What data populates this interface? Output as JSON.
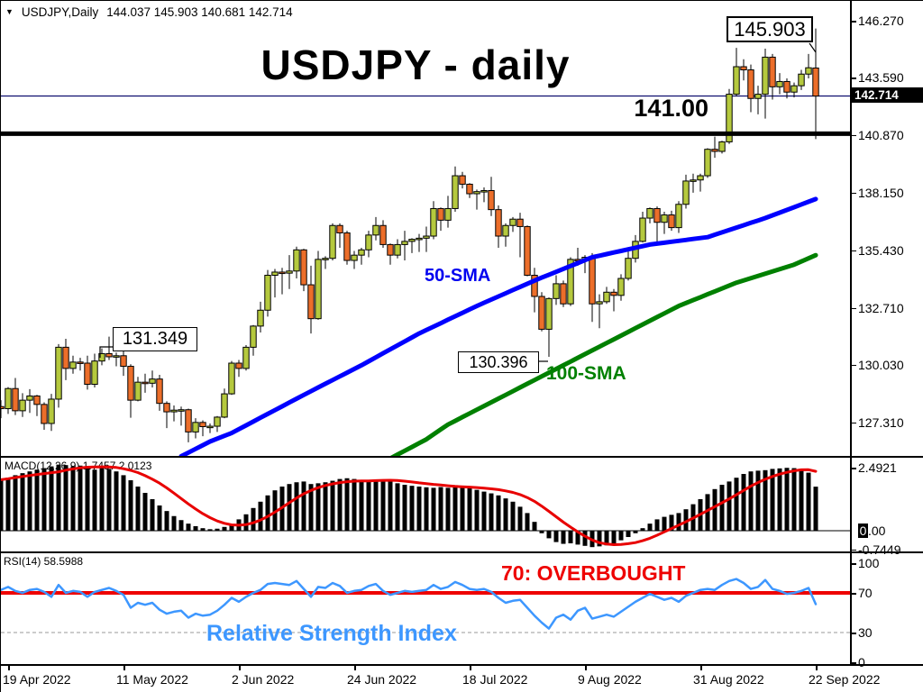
{
  "header": {
    "triangle_icon": "▼",
    "symbol": "USDJPY,Daily",
    "ohlc": "144.037 145.903 140.681 142.714"
  },
  "main": {
    "title": "USDJPY - daily",
    "high_annotation": "145.903",
    "support_label": "141.00",
    "annotation_131": "131.349",
    "annotation_130": "130.396",
    "sma50_label": "50-SMA",
    "sma100_label": "100-SMA",
    "price_badge": "142.714"
  },
  "macd_panel": {
    "label": "MACD(12,26,9) 1.7457 2.0123"
  },
  "rsi_panel": {
    "label": "RSI(14) 58.5988",
    "overbought": "70: OVERBOUGHT",
    "caption": "Relative Strength Index"
  },
  "chart_data": {
    "type": "candlestick",
    "symbol": "USDJPY",
    "timeframe": "Daily",
    "title": "USDJPY - daily",
    "x_ticks": [
      "19 Apr 2022",
      "11 May 2022",
      "2 Jun 2022",
      "24 Jun 2022",
      "18 Jul 2022",
      "9 Aug 2022",
      "31 Aug 2022",
      "22 Sep 2022"
    ],
    "y_axis": [
      "146.270",
      "143.590",
      "140.870",
      "138.150",
      "135.430",
      "132.710",
      "130.030",
      "127.310"
    ],
    "price_line": 142.714,
    "support_line": 141.0,
    "candles": [
      [
        128.05,
        128.35,
        127.5,
        127.95
      ],
      [
        127.95,
        128.97,
        127.7,
        128.9
      ],
      [
        128.9,
        129.4,
        127.65,
        127.85
      ],
      [
        127.85,
        128.68,
        127.56,
        128.35
      ],
      [
        128.35,
        128.87,
        127.75,
        128.55
      ],
      [
        128.55,
        128.6,
        127.6,
        128.15
      ],
      [
        128.15,
        128.25,
        126.95,
        127.25
      ],
      [
        127.25,
        128.65,
        126.9,
        128.4
      ],
      [
        128.4,
        131.0,
        128.0,
        130.85
      ],
      [
        130.85,
        131.25,
        129.3,
        129.85
      ],
      [
        129.85,
        130.45,
        129.6,
        130.15
      ],
      [
        130.15,
        130.35,
        129.75,
        130.1
      ],
      [
        130.1,
        130.45,
        128.85,
        129.1
      ],
      [
        129.1,
        130.55,
        128.95,
        130.2
      ],
      [
        130.2,
        130.8,
        130.0,
        130.55
      ],
      [
        130.55,
        131.35,
        130.25,
        130.4
      ],
      [
        130.4,
        130.6,
        129.95,
        130.45
      ],
      [
        130.45,
        130.8,
        129.5,
        129.95
      ],
      [
        129.95,
        130.05,
        127.52,
        128.35
      ],
      [
        128.35,
        129.45,
        128.3,
        129.2
      ],
      [
        129.2,
        129.6,
        128.7,
        129.15
      ],
      [
        129.15,
        129.75,
        128.95,
        129.35
      ],
      [
        129.35,
        129.55,
        127.85,
        128.2
      ],
      [
        128.2,
        128.3,
        127.03,
        127.8
      ],
      [
        127.8,
        128.1,
        127.35,
        127.88
      ],
      [
        127.88,
        128.05,
        127.15,
        127.9
      ],
      [
        127.9,
        127.95,
        126.36,
        126.85
      ],
      [
        126.85,
        127.5,
        126.55,
        127.3
      ],
      [
        127.3,
        127.4,
        126.65,
        127.1
      ],
      [
        127.1,
        127.25,
        126.8,
        127.12
      ],
      [
        127.12,
        127.6,
        126.85,
        127.55
      ],
      [
        127.55,
        128.9,
        127.5,
        128.65
      ],
      [
        128.65,
        130.2,
        128.6,
        130.1
      ],
      [
        130.1,
        130.25,
        129.45,
        129.85
      ],
      [
        129.85,
        130.95,
        129.75,
        130.85
      ],
      [
        130.85,
        131.9,
        130.45,
        131.85
      ],
      [
        131.85,
        133.0,
        131.55,
        132.6
      ],
      [
        132.6,
        134.5,
        132.3,
        134.25
      ],
      [
        134.25,
        134.55,
        133.2,
        134.4
      ],
      [
        134.4,
        134.6,
        133.35,
        134.35
      ],
      [
        134.35,
        135.2,
        133.6,
        134.45
      ],
      [
        134.45,
        135.6,
        134.1,
        135.45
      ],
      [
        135.45,
        135.5,
        133.5,
        133.8
      ],
      [
        133.8,
        134.7,
        131.5,
        132.2
      ],
      [
        132.2,
        135.4,
        132.15,
        135.0
      ],
      [
        135.0,
        135.15,
        134.55,
        135.05
      ],
      [
        135.05,
        136.7,
        134.95,
        136.6
      ],
      [
        136.6,
        136.7,
        135.55,
        136.25
      ],
      [
        136.25,
        136.35,
        134.75,
        134.95
      ],
      [
        134.95,
        135.4,
        134.55,
        135.2
      ],
      [
        135.2,
        135.55,
        134.75,
        135.45
      ],
      [
        135.45,
        136.35,
        135.1,
        136.15
      ],
      [
        136.15,
        137.0,
        135.9,
        136.6
      ],
      [
        136.6,
        136.85,
        135.55,
        135.7
      ],
      [
        135.7,
        135.75,
        134.75,
        135.2
      ],
      [
        135.2,
        135.95,
        135.05,
        135.7
      ],
      [
        135.7,
        136.35,
        134.95,
        135.85
      ],
      [
        135.85,
        136.0,
        135.3,
        135.95
      ],
      [
        135.95,
        136.2,
        135.35,
        136.0
      ],
      [
        136.0,
        136.55,
        135.35,
        136.1
      ],
      [
        136.1,
        137.75,
        135.95,
        137.4
      ],
      [
        137.4,
        137.45,
        136.35,
        136.85
      ],
      [
        136.85,
        138.0,
        136.5,
        137.4
      ],
      [
        137.4,
        139.39,
        137.25,
        138.95
      ],
      [
        138.95,
        139.13,
        138.35,
        138.55
      ],
      [
        138.55,
        138.6,
        137.9,
        138.1
      ],
      [
        138.1,
        138.3,
        137.35,
        138.2
      ],
      [
        138.2,
        138.4,
        137.7,
        138.25
      ],
      [
        138.25,
        138.9,
        137.05,
        137.35
      ],
      [
        137.35,
        137.55,
        135.55,
        136.1
      ],
      [
        136.1,
        136.7,
        135.6,
        136.6
      ],
      [
        136.6,
        137.0,
        136.3,
        136.9
      ],
      [
        136.9,
        137.2,
        135.1,
        136.55
      ],
      [
        136.55,
        136.6,
        134.2,
        134.25
      ],
      [
        134.25,
        134.6,
        132.5,
        133.25
      ],
      [
        133.25,
        133.45,
        131.6,
        131.7
      ],
      [
        131.7,
        133.2,
        130.4,
        133.15
      ],
      [
        133.15,
        134.25,
        132.85,
        133.85
      ],
      [
        133.85,
        134.0,
        132.75,
        132.9
      ],
      [
        132.9,
        135.1,
        132.8,
        135.0
      ],
      [
        135.0,
        135.55,
        134.7,
        134.95
      ],
      [
        134.95,
        135.2,
        134.35,
        135.1
      ],
      [
        135.1,
        135.3,
        132.05,
        132.9
      ],
      [
        132.9,
        133.35,
        131.75,
        133.0
      ],
      [
        133.0,
        133.7,
        132.9,
        133.45
      ],
      [
        133.45,
        133.6,
        132.55,
        133.3
      ],
      [
        133.3,
        134.3,
        133.05,
        134.1
      ],
      [
        134.1,
        135.5,
        134.0,
        135.05
      ],
      [
        135.05,
        136.15,
        134.85,
        135.85
      ],
      [
        135.85,
        137.25,
        135.8,
        136.95
      ],
      [
        136.95,
        137.45,
        136.7,
        137.4
      ],
      [
        137.4,
        137.5,
        135.8,
        136.75
      ],
      [
        136.75,
        137.25,
        136.2,
        137.1
      ],
      [
        137.1,
        137.3,
        136.35,
        136.5
      ],
      [
        136.5,
        137.75,
        136.25,
        137.6
      ],
      [
        137.6,
        139.0,
        137.4,
        138.7
      ],
      [
        138.7,
        139.05,
        138.15,
        138.75
      ],
      [
        138.75,
        139.05,
        138.2,
        138.95
      ],
      [
        138.95,
        140.25,
        138.85,
        140.2
      ],
      [
        140.2,
        140.8,
        139.8,
        140.1
      ],
      [
        140.1,
        140.6,
        140.0,
        140.55
      ],
      [
        140.55,
        143.05,
        140.45,
        142.8
      ],
      [
        142.8,
        144.99,
        142.7,
        144.1
      ],
      [
        144.1,
        144.45,
        143.45,
        143.95
      ],
      [
        143.95,
        144.2,
        141.95,
        142.6
      ],
      [
        142.6,
        143.2,
        141.85,
        142.8
      ],
      [
        142.8,
        144.95,
        141.65,
        144.55
      ],
      [
        144.55,
        144.7,
        142.55,
        143.15
      ],
      [
        143.15,
        143.8,
        142.8,
        143.4
      ],
      [
        143.4,
        143.55,
        142.6,
        142.9
      ],
      [
        142.9,
        143.35,
        142.65,
        143.2
      ],
      [
        143.2,
        143.95,
        143.0,
        143.75
      ],
      [
        143.75,
        144.7,
        143.55,
        144.05
      ],
      [
        144.037,
        145.903,
        140.681,
        142.714
      ]
    ],
    "sma50_anchors": [
      [
        25,
        125.7
      ],
      [
        29,
        126.4
      ],
      [
        32,
        126.8
      ],
      [
        42,
        128.6
      ],
      [
        50,
        130.0
      ],
      [
        58,
        131.5
      ],
      [
        66,
        132.8
      ],
      [
        74,
        134.0
      ],
      [
        82,
        135.1
      ],
      [
        90,
        135.7
      ],
      [
        98,
        136.05
      ],
      [
        106,
        136.95
      ],
      [
        113,
        137.85
      ]
    ],
    "sma100_anchors": [
      [
        54,
        125.6
      ],
      [
        59,
        126.5
      ],
      [
        62,
        127.2
      ],
      [
        70,
        128.6
      ],
      [
        78,
        130.0
      ],
      [
        86,
        131.4
      ],
      [
        94,
        132.8
      ],
      [
        102,
        133.9
      ],
      [
        110,
        134.75
      ],
      [
        113,
        135.2
      ]
    ],
    "macd": {
      "axis": [
        "2.4921",
        "0.00",
        "-0.7449"
      ],
      "last_main": 1.7457,
      "last_signal": 2.0123,
      "signal_method": "sma9 of values",
      "values": [
        2.02,
        2.1,
        2.2,
        2.28,
        2.35,
        2.42,
        2.48,
        2.55,
        2.62,
        2.6,
        2.55,
        2.58,
        2.5,
        2.42,
        2.48,
        2.45,
        2.35,
        2.2,
        2.0,
        1.75,
        1.5,
        1.25,
        1.0,
        0.78,
        0.58,
        0.42,
        0.28,
        0.18,
        0.1,
        0.06,
        0.08,
        0.15,
        0.25,
        0.45,
        0.65,
        0.9,
        1.15,
        1.4,
        1.6,
        1.75,
        1.85,
        1.92,
        1.95,
        1.85,
        1.88,
        1.92,
        1.98,
        2.05,
        2.08,
        2.05,
        2.0,
        1.97,
        1.95,
        1.98,
        1.95,
        1.88,
        1.82,
        1.78,
        1.75,
        1.72,
        1.7,
        1.73,
        1.7,
        1.72,
        1.75,
        1.7,
        1.62,
        1.55,
        1.48,
        1.4,
        1.28,
        1.15,
        0.95,
        0.7,
        0.35,
        -0.1,
        -0.3,
        -0.45,
        -0.52,
        -0.5,
        -0.55,
        -0.6,
        -0.65,
        -0.62,
        -0.58,
        -0.5,
        -0.38,
        -0.25,
        -0.1,
        0.1,
        0.28,
        0.45,
        0.55,
        0.63,
        0.7,
        0.85,
        1.05,
        1.25,
        1.45,
        1.65,
        1.82,
        1.95,
        2.1,
        2.25,
        2.35,
        2.38,
        2.4,
        2.45,
        2.47,
        2.4921,
        2.48,
        2.45,
        2.3,
        1.7457
      ]
    },
    "rsi": {
      "axis": [
        "100",
        "70",
        "30",
        "0"
      ],
      "overbought_level": 70,
      "dashed_level": 30,
      "last": 58.5988,
      "values": [
        73,
        76,
        72,
        70,
        73,
        74,
        71,
        66,
        78,
        70,
        72,
        71,
        66,
        71,
        73,
        75,
        72,
        68,
        55,
        60,
        58,
        60,
        53,
        49,
        51,
        52,
        45,
        49,
        47,
        48,
        52,
        58,
        65,
        61,
        66,
        70,
        73,
        79,
        80,
        79,
        78,
        82,
        74,
        66,
        76,
        75,
        80,
        77,
        70,
        72,
        73,
        77,
        79,
        72,
        68,
        70,
        72,
        71,
        72,
        73,
        78,
        74,
        76,
        81,
        78,
        74,
        73,
        74,
        71,
        65,
        60,
        62,
        63,
        55,
        47,
        40,
        34,
        45,
        48,
        43,
        52,
        55,
        44,
        46,
        48,
        46,
        51,
        56,
        61,
        65,
        69,
        66,
        63,
        65,
        61,
        67,
        70,
        73,
        74,
        73,
        78,
        82,
        84,
        80,
        74,
        76,
        83,
        74,
        72,
        69,
        70,
        72,
        75,
        58.6
      ]
    },
    "colors": {
      "bull": "#b5c93e",
      "bear": "#ec6e2a",
      "sma50": "#0000ff",
      "sma100": "#008000",
      "signal": "#e80000",
      "rsi_line": "#3d97ff",
      "overbought_line": "#ee0000",
      "price_line": "#000066",
      "support": "#000000"
    }
  }
}
